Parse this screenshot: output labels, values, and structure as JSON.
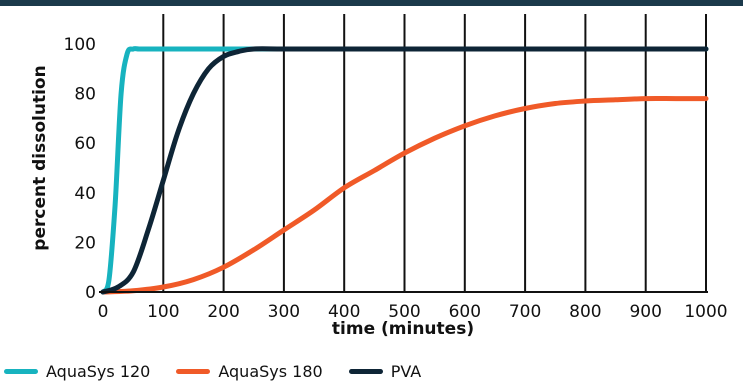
{
  "colors": {
    "top_rule": "#1b3a4b",
    "aquasys120": "#17b3bf",
    "aquasys180": "#f05a28",
    "pva": "#0e2536"
  },
  "chart_data": {
    "type": "line",
    "title": "",
    "xlabel": "time (minutes)",
    "ylabel": "percent dissolution",
    "xlim": [
      0,
      1000
    ],
    "ylim": [
      0,
      100
    ],
    "xticks": [
      0,
      100,
      200,
      300,
      400,
      500,
      600,
      700,
      800,
      900,
      1000
    ],
    "yticks": [
      0,
      20,
      40,
      60,
      80,
      100
    ],
    "vertical_grid": true,
    "legend_position": "bottom",
    "series": [
      {
        "name": "AquaSys 120",
        "color": "#17b3bf",
        "x": [
          0,
          10,
          20,
          30,
          40,
          50,
          60,
          80,
          100,
          200,
          400,
          600,
          800,
          1000
        ],
        "y": [
          0,
          5,
          35,
          80,
          96,
          98,
          98,
          98,
          98,
          98,
          98,
          98,
          98,
          98
        ]
      },
      {
        "name": "AquaSys 180",
        "color": "#f05a28",
        "x": [
          0,
          50,
          100,
          150,
          200,
          250,
          300,
          350,
          400,
          450,
          500,
          550,
          600,
          650,
          700,
          750,
          800,
          850,
          900,
          950,
          1000
        ],
        "y": [
          0,
          0.5,
          2,
          5,
          10,
          17,
          25,
          33,
          42,
          49,
          56,
          62,
          67,
          71,
          74,
          76,
          77,
          77.5,
          78,
          78,
          78
        ]
      },
      {
        "name": "PVA",
        "color": "#0e2536",
        "x": [
          0,
          25,
          50,
          75,
          100,
          125,
          150,
          175,
          200,
          225,
          250,
          300,
          400,
          600,
          800,
          1000
        ],
        "y": [
          0,
          2,
          8,
          25,
          45,
          65,
          80,
          90,
          95,
          97,
          98,
          98,
          98,
          98,
          98,
          98
        ]
      }
    ]
  },
  "legend": {
    "items": [
      {
        "label": "AquaSys 120",
        "color": "#17b3bf"
      },
      {
        "label": "AquaSys 180",
        "color": "#f05a28"
      },
      {
        "label": "PVA",
        "color": "#0e2536"
      }
    ]
  }
}
